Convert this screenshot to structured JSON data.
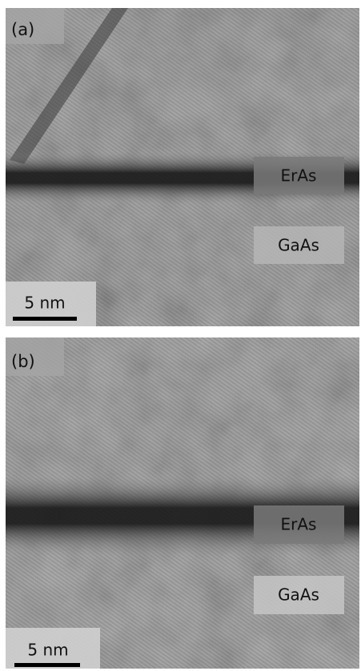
{
  "panels": [
    {
      "label": "(a)",
      "layers": [
        "ErAs",
        "GaAs"
      ],
      "scale_bar": "5 nm"
    },
    {
      "label": "(b)",
      "layers": [
        "ErAs",
        "GaAs"
      ],
      "scale_bar": "5 nm"
    }
  ]
}
